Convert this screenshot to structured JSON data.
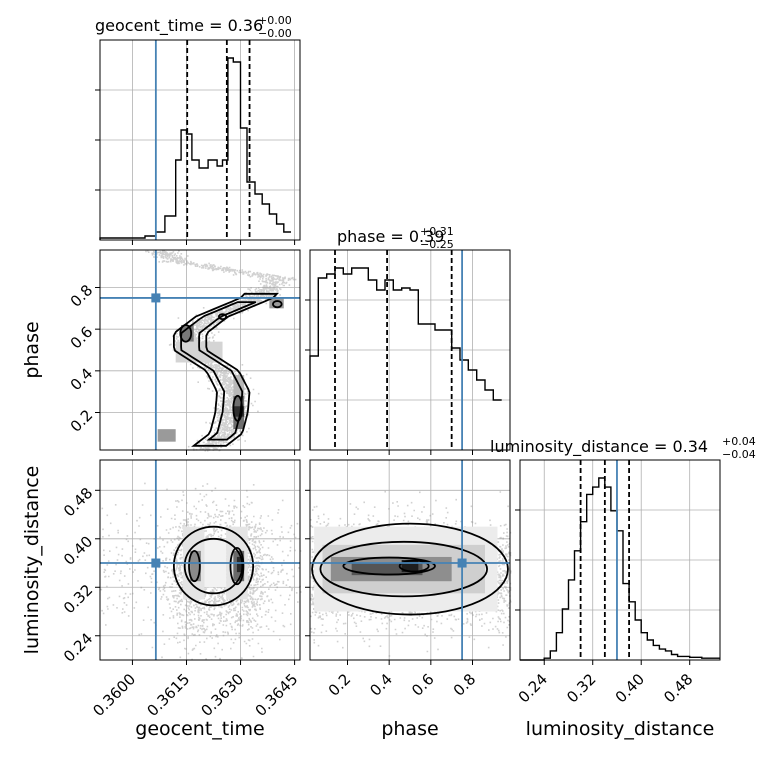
{
  "chart_data": {
    "type": "corner",
    "parameters": [
      "geocent_time",
      "phase",
      "luminosity_distance"
    ],
    "truth": {
      "geocent_time": 0.36065,
      "phase": 0.75,
      "luminosity_distance": 0.36
    },
    "titles": [
      {
        "param": "geocent_time",
        "main": "geocent_time = 0.36",
        "sup": "+0.00",
        "sub": "−0.00"
      },
      {
        "param": "phase",
        "main": "phase = 0.39",
        "sup": "+0.31",
        "sub": "−0.25"
      },
      {
        "param": "luminosity_distance",
        "main": "luminosity_distance = 0.34",
        "sup": "+0.04",
        "sub": "−0.04"
      }
    ],
    "axis_labels": {
      "geocent_time": "geocent_time",
      "phase": "phase",
      "luminosity_distance": "luminosity_distance"
    },
    "ranges": {
      "geocent_time": [
        0.3591,
        0.36465
      ],
      "phase": [
        0.02,
        0.98
      ],
      "luminosity_distance": [
        0.2,
        0.53
      ]
    },
    "ticks": {
      "geocent_time": [
        "0.3600",
        "0.3615",
        "0.3630",
        "0.3645"
      ],
      "phase": [
        "0.2",
        "0.4",
        "0.6",
        "0.8"
      ],
      "luminosity_distance": [
        "0.24",
        "0.32",
        "0.40",
        "0.48"
      ]
    },
    "quantiles": {
      "geocent_time": [
        0.36152,
        0.36262,
        0.36325
      ],
      "phase": [
        0.14,
        0.39,
        0.7
      ],
      "luminosity_distance": [
        0.3,
        0.34,
        0.38
      ]
    },
    "histograms": {
      "geocent_time": {
        "edges": [
          0.3591,
          0.36035,
          0.36065,
          0.3609,
          0.3612,
          0.36135,
          0.3615,
          0.36165,
          0.36185,
          0.3621,
          0.36235,
          0.3625,
          0.36265,
          0.3628,
          0.363,
          0.36318,
          0.3634,
          0.3636,
          0.3638,
          0.364,
          0.3642,
          0.3644
        ],
        "counts": [
          0.01,
          0.02,
          0.04,
          0.12,
          0.4,
          0.55,
          0.53,
          0.4,
          0.36,
          0.4,
          0.37,
          0.4,
          0.91,
          0.89,
          0.56,
          0.29,
          0.23,
          0.18,
          0.13,
          0.08,
          0.04
        ]
      },
      "phase": {
        "edges": [
          0.02,
          0.06,
          0.1,
          0.14,
          0.18,
          0.22,
          0.26,
          0.3,
          0.34,
          0.38,
          0.42,
          0.46,
          0.5,
          0.54,
          0.58,
          0.62,
          0.66,
          0.7,
          0.74,
          0.78,
          0.82,
          0.86,
          0.9,
          0.94
        ],
        "counts": [
          0.47,
          0.86,
          0.88,
          0.91,
          0.88,
          0.91,
          0.91,
          0.85,
          0.8,
          0.85,
          0.8,
          0.81,
          0.8,
          0.63,
          0.63,
          0.6,
          0.6,
          0.51,
          0.45,
          0.4,
          0.35,
          0.3,
          0.25
        ]
      },
      "luminosity_distance": {
        "edges": [
          0.2,
          0.24,
          0.25,
          0.26,
          0.27,
          0.28,
          0.29,
          0.3,
          0.31,
          0.32,
          0.33,
          0.34,
          0.35,
          0.36,
          0.37,
          0.38,
          0.39,
          0.4,
          0.41,
          0.42,
          0.43,
          0.44,
          0.45,
          0.46,
          0.48,
          0.5,
          0.53
        ],
        "counts": [
          0.0,
          0.01,
          0.05,
          0.15,
          0.28,
          0.44,
          0.6,
          0.76,
          0.91,
          0.95,
          1.0,
          0.95,
          0.82,
          0.71,
          0.42,
          0.32,
          0.22,
          0.15,
          0.11,
          0.08,
          0.06,
          0.05,
          0.03,
          0.02,
          0.015,
          0.01
        ]
      }
    }
  }
}
